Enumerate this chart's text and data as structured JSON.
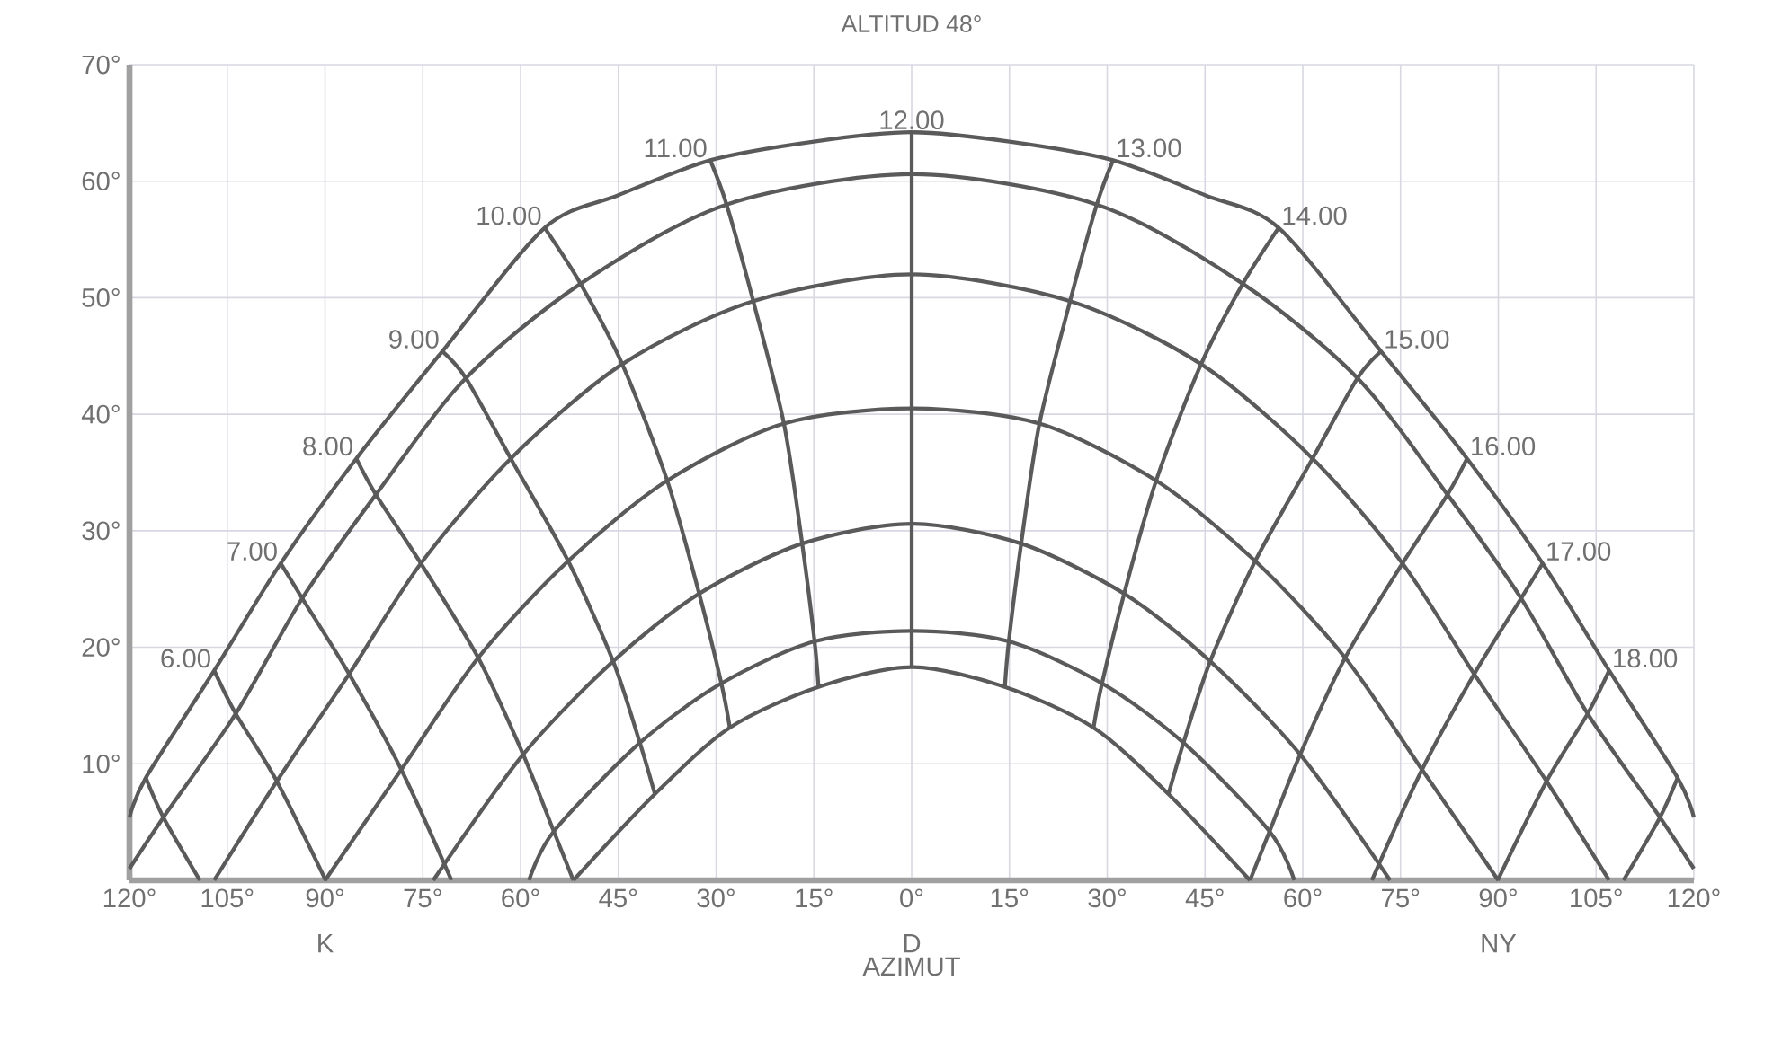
{
  "chart_data": {
    "type": "line",
    "title": "ALTITUD 48°",
    "xlabel": "AZIMUT",
    "grid": true,
    "xlim": [
      -120,
      120
    ],
    "ylim": [
      0,
      70
    ],
    "xticks": [
      {
        "value": -120,
        "label": "120°"
      },
      {
        "value": -105,
        "label": "105°"
      },
      {
        "value": -90,
        "label": "90°"
      },
      {
        "value": -75,
        "label": "75°"
      },
      {
        "value": -60,
        "label": "60°"
      },
      {
        "value": -45,
        "label": "45°"
      },
      {
        "value": -30,
        "label": "30°"
      },
      {
        "value": -15,
        "label": "15°"
      },
      {
        "value": 0,
        "label": "0°"
      },
      {
        "value": 15,
        "label": "15°"
      },
      {
        "value": 30,
        "label": "30°"
      },
      {
        "value": 45,
        "label": "45°"
      },
      {
        "value": 60,
        "label": "60°"
      },
      {
        "value": 75,
        "label": "75°"
      },
      {
        "value": 90,
        "label": "90°"
      },
      {
        "value": 105,
        "label": "105°"
      },
      {
        "value": 120,
        "label": "120°"
      }
    ],
    "yticks": [
      {
        "value": 10,
        "label": "10°"
      },
      {
        "value": 20,
        "label": "20°"
      },
      {
        "value": 30,
        "label": "30°"
      },
      {
        "value": 40,
        "label": "40°"
      },
      {
        "value": 50,
        "label": "50°"
      },
      {
        "value": 60,
        "label": "60°"
      },
      {
        "value": 70,
        "label": "70°"
      }
    ],
    "annotations": [
      {
        "text": "K",
        "x": -90,
        "y": 0
      },
      "D",
      {
        "text": "NY",
        "x": 90,
        "y": 0
      }
    ],
    "series": [
      {
        "color": "#5a5a5a",
        "x": [
          -120,
          -117.5,
          -107,
          -96.8,
          -85.2,
          -72,
          -56.3,
          -45,
          -30.9,
          -15,
          0,
          15,
          30.9,
          45,
          56.3,
          72,
          85.2,
          96.8,
          107,
          117.5,
          120
        ],
        "values": [
          5.4,
          8.8,
          18,
          27.2,
          36.2,
          45.4,
          56,
          58.8,
          61.8,
          63.4,
          64.2,
          63.4,
          61.8,
          58.8,
          56,
          45.4,
          36.2,
          27.2,
          18,
          8.8,
          5.4
        ]
      },
      {
        "color": "#5a5a5a",
        "x": [
          -120,
          -114.8,
          -103.7,
          -93.5,
          -82.2,
          -68.4,
          -50.8,
          -28.4,
          0,
          28.4,
          50.8,
          68.4,
          82.2,
          93.5,
          103.7,
          114.8,
          120
        ],
        "values": [
          1,
          5.4,
          14.3,
          24.2,
          33.1,
          43.1,
          51.2,
          58,
          60.6,
          58,
          51.2,
          43.1,
          33.1,
          24.2,
          14.3,
          5.4,
          1
        ]
      },
      {
        "color": "#5a5a5a",
        "x": [
          -107,
          -97.4,
          -86.3,
          -75.3,
          -61.5,
          -44.4,
          -24.3,
          0,
          24.3,
          44.4,
          61.5,
          75.3,
          86.3,
          97.4,
          107
        ],
        "values": [
          0,
          8.5,
          17.7,
          27.2,
          36.2,
          44.3,
          49.7,
          52,
          49.7,
          44.3,
          36.2,
          27.2,
          17.7,
          8.5,
          0
        ]
      },
      {
        "color": "#5a5a5a",
        "x": [
          -90,
          -78.3,
          -66.5,
          -52.7,
          -37.5,
          -19.6,
          0,
          19.6,
          37.5,
          52.7,
          66.5,
          78.3,
          90
        ],
        "values": [
          0,
          9.5,
          19.1,
          27.4,
          34.3,
          39.2,
          40.5,
          39.2,
          34.3,
          27.4,
          19.1,
          9.5,
          0
        ]
      },
      {
        "color": "#5a5a5a",
        "x": [
          -73.4,
          -59.6,
          -45.8,
          -32.6,
          -16.8,
          0,
          16.8,
          32.6,
          45.8,
          59.6,
          73.4
        ],
        "values": [
          0,
          10.8,
          18.8,
          24.6,
          28.9,
          30.6,
          28.9,
          24.6,
          18.8,
          10.8,
          0
        ]
      },
      {
        "color": "#5a5a5a",
        "x": [
          -58.7,
          -54.9,
          -41.7,
          -29.2,
          -14.9,
          0,
          14.9,
          29.2,
          41.7,
          54.9,
          58.7
        ],
        "values": [
          0,
          4.2,
          11.8,
          16.9,
          20.5,
          21.4,
          20.5,
          16.9,
          11.8,
          4.2,
          0
        ]
      },
      {
        "color": "#5a5a5a",
        "x": [
          -51.9,
          -39.4,
          -27.9,
          -14.3,
          0,
          14.3,
          27.9,
          39.4,
          51.9
        ],
        "values": [
          0,
          7.4,
          13.1,
          16.6,
          18.3,
          16.6,
          13.1,
          7.4,
          0
        ]
      },
      {
        "color": "#5a5a5a",
        "x": [
          -117.5,
          -114.8,
          -109.2
        ],
        "values": [
          8.8,
          5.4,
          0
        ]
      },
      {
        "name": "6.00",
        "color": "#5a5a5a",
        "x": [
          -107,
          -103.7,
          -97.4,
          -89.9
        ],
        "values": [
          18,
          14.3,
          8.5,
          0
        ]
      },
      {
        "name": "7.00",
        "color": "#5a5a5a",
        "x": [
          -96.8,
          -93.5,
          -86.3,
          -78.3,
          -70.6
        ],
        "values": [
          27.2,
          24.2,
          17.7,
          9.5,
          0
        ]
      },
      {
        "name": "8.00",
        "color": "#5a5a5a",
        "x": [
          -85.2,
          -82.2,
          -75.3,
          -66.5,
          -59.6,
          -54.9,
          -51.9
        ],
        "values": [
          36.2,
          33.1,
          27.2,
          19.1,
          10.8,
          4.2,
          0
        ]
      },
      {
        "name": "9.00",
        "color": "#5a5a5a",
        "x": [
          -72,
          -68.4,
          -61.5,
          -52.7,
          -45.8,
          -41.7,
          -39.4
        ],
        "values": [
          45.4,
          43.1,
          36.2,
          27.4,
          18.8,
          11.8,
          7.4
        ]
      },
      {
        "name": "10.00",
        "color": "#5a5a5a",
        "x": [
          -56.3,
          -50.8,
          -44.4,
          -37.5,
          -32.6,
          -29.2,
          -27.9
        ],
        "values": [
          56,
          51.2,
          44.3,
          34.3,
          24.6,
          16.9,
          13.1
        ]
      },
      {
        "name": "11.00",
        "color": "#5a5a5a",
        "x": [
          -30.9,
          -28.4,
          -24.3,
          -19.6,
          -16.8,
          -14.9,
          -14.3
        ],
        "values": [
          61.8,
          58,
          49.7,
          39.2,
          28.9,
          20.5,
          16.6
        ]
      },
      {
        "name": "12.00",
        "color": "#5a5a5a",
        "x": [
          0,
          0,
          0,
          0,
          0,
          0,
          0
        ],
        "values": [
          64.2,
          60.6,
          52,
          40.5,
          30.6,
          21.4,
          18.3
        ]
      },
      {
        "name": "13.00",
        "color": "#5a5a5a",
        "x": [
          30.9,
          28.4,
          24.3,
          19.6,
          16.8,
          14.9,
          14.3
        ],
        "values": [
          61.8,
          58,
          49.7,
          39.2,
          28.9,
          20.5,
          16.6
        ]
      },
      {
        "name": "14.00",
        "color": "#5a5a5a",
        "x": [
          56.3,
          50.8,
          44.4,
          37.5,
          32.6,
          29.2,
          27.9
        ],
        "values": [
          56,
          51.2,
          44.3,
          34.3,
          24.6,
          16.9,
          13.1
        ]
      },
      {
        "name": "15.00",
        "color": "#5a5a5a",
        "x": [
          72,
          68.4,
          61.5,
          52.7,
          45.8,
          41.7,
          39.4
        ],
        "values": [
          45.4,
          43.1,
          36.2,
          27.4,
          18.8,
          11.8,
          7.4
        ]
      },
      {
        "name": "16.00",
        "color": "#5a5a5a",
        "x": [
          85.2,
          82.2,
          75.3,
          66.5,
          59.6,
          54.9,
          51.9
        ],
        "values": [
          36.2,
          33.1,
          27.2,
          19.1,
          10.8,
          4.2,
          0
        ]
      },
      {
        "name": "17.00",
        "color": "#5a5a5a",
        "x": [
          96.8,
          93.5,
          86.3,
          78.3,
          70.6
        ],
        "values": [
          27.2,
          24.2,
          17.7,
          9.5,
          0
        ]
      },
      {
        "name": "18.00",
        "color": "#5a5a5a",
        "x": [
          107,
          103.7,
          97.4,
          89.9
        ],
        "values": [
          18,
          14.3,
          8.5,
          0
        ]
      },
      {
        "color": "#5a5a5a",
        "x": [
          117.5,
          114.8,
          109.2
        ],
        "values": [
          8.8,
          5.4,
          0
        ]
      }
    ]
  }
}
